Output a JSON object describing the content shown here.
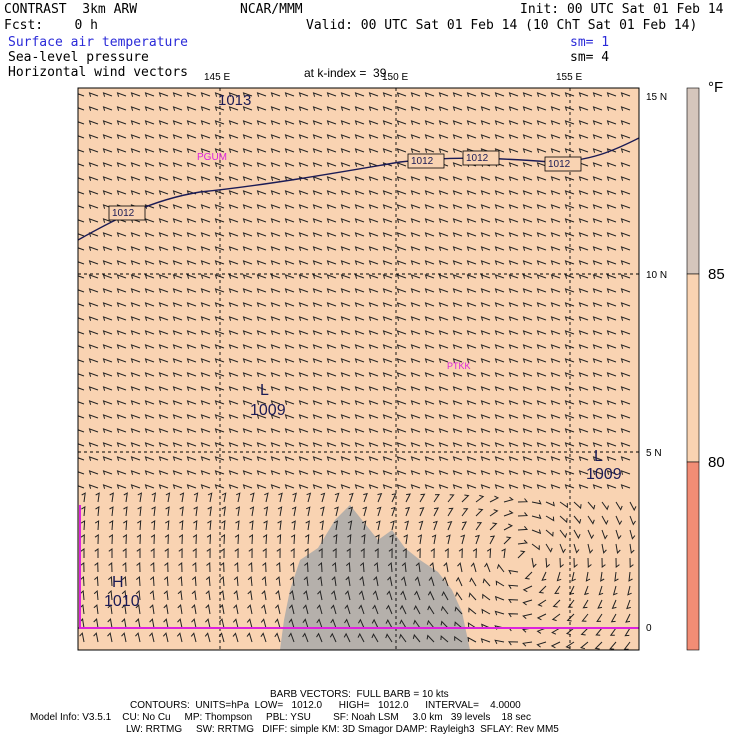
{
  "header": {
    "model": "CONTRAST  3km ARW",
    "org": "NCAR/MMM",
    "init": "Init: 00 UTC Sat 01 Feb 14",
    "fcst": "Fcst:    0 h",
    "valid": "Valid: 00 UTC Sat 01 Feb 14 (10 ChT Sat 01 Feb 14)",
    "field1": "Surface air temperature",
    "sm1": "sm= 1",
    "field2": "Sea-level pressure",
    "sm2": "sm= 4",
    "field3": "Horizontal wind vectors",
    "kindex": "at k-index =  39"
  },
  "map": {
    "lon_labels": [
      "145 E",
      "150 E",
      "155 E"
    ],
    "lat_labels": [
      "15 N",
      "10 N",
      "5 N",
      "0"
    ],
    "place_labels": [
      "PGUM",
      "PTKK"
    ],
    "isobar_labels": [
      "1013",
      "1012",
      "1012",
      "1012",
      "1012"
    ],
    "lows": [
      {
        "mark": "L",
        "value": "1009"
      },
      {
        "mark": "L",
        "value": "1009"
      }
    ],
    "high": {
      "mark": "H",
      "value": "1010"
    },
    "colors": {
      "fill_80_85": "#f9d3b2",
      "fill_above_85": "#d5c6bc",
      "fill_below_80": "#f28d75",
      "isobar": "#1b1b55",
      "barb": "#222222",
      "station": "#dd22dd",
      "terrain": "#a9a9a9"
    }
  },
  "colorbar": {
    "unit": "°F",
    "labels": [
      "85",
      "80"
    ]
  },
  "footer": {
    "line1": "BARB VECTORS:  FULL BARB = 10 kts",
    "line2": "CONTOURS:  UNITS=hPa  LOW=   1012.0      HIGH=   1012.0      INTERVAL=    4.0000",
    "line3": "Model Info: V3.5.1    CU: No Cu     MP: Thompson     PBL: YSU        SF: Noah LSM     3.0 km   39 levels    18 sec",
    "line4": "LW: RRTMG     SW: RRTMG   DIFF: simple KM: 3D Smagor DAMP: Rayleigh3  SFLAY: Rev MM5"
  }
}
